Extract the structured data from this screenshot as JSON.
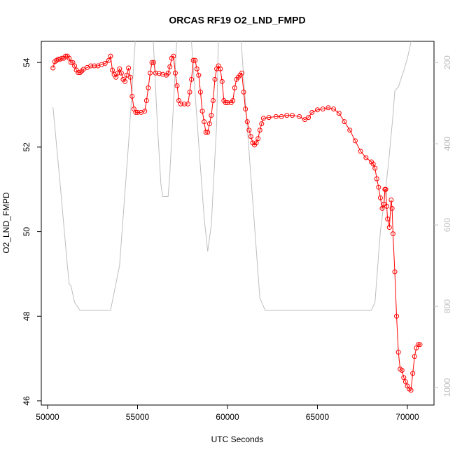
{
  "chart_data": {
    "type": "line",
    "title": "ORCAS RF19 O2_LND_FMPD",
    "x_label": "UTC Seconds",
    "y_label": "O2_LND_FMPD",
    "xlim": [
      49650,
      71480
    ],
    "xticks": [
      50000,
      55000,
      60000,
      65000,
      70000
    ],
    "ylim": [
      45.9,
      54.5
    ],
    "yticks": [
      46,
      48,
      50,
      52,
      54
    ],
    "y2lim": [
      1043,
      148
    ],
    "y2ticks": [
      200,
      400,
      600,
      800,
      1000
    ],
    "series": [
      {
        "color": "#bebebe",
        "axis": "y2",
        "x": [
          50300,
          50700,
          51100,
          51200,
          51300,
          51500,
          51800,
          52500,
          53500,
          54000,
          54500,
          54900,
          55400,
          55800,
          56100,
          56300,
          56400,
          56700,
          56800,
          57000,
          57200,
          57500,
          58000,
          58400,
          58700,
          58900,
          59100,
          59400,
          59500,
          60700,
          61000,
          61500,
          61800,
          62100,
          63000,
          65000,
          67000,
          68000,
          68200,
          68500,
          68800,
          69000,
          69200,
          69300,
          69500,
          69800,
          70000,
          70200,
          70500
        ],
        "values": [
          310,
          500,
          700,
          745,
          750,
          790,
          810,
          810,
          810,
          700,
          400,
          130,
          50,
          80,
          350,
          500,
          530,
          530,
          470,
          300,
          130,
          50,
          150,
          400,
          580,
          665,
          600,
          350,
          130,
          110,
          300,
          600,
          780,
          810,
          810,
          810,
          810,
          810,
          790,
          615,
          510,
          425,
          330,
          270,
          260,
          220,
          190,
          150,
          120
        ]
      },
      {
        "color": "#ff0000",
        "axis": "y",
        "x": [
          50300,
          50400,
          50500,
          50600,
          50700,
          50800,
          50900,
          51000,
          51100,
          51200,
          51300,
          51400,
          51500,
          51600,
          51700,
          51800,
          51900,
          52000,
          52200,
          52400,
          52600,
          52800,
          53000,
          53200,
          53400,
          53500,
          53600,
          53700,
          53800,
          53900,
          54000,
          54100,
          54200,
          54300,
          54400,
          54500,
          54600,
          54700,
          54800,
          54900,
          55000,
          55200,
          55400,
          55500,
          55600,
          55700,
          55800,
          55900,
          56000,
          56200,
          56400,
          56600,
          56700,
          56800,
          56900,
          57000,
          57100,
          57200,
          57300,
          57400,
          57600,
          57800,
          57900,
          58000,
          58100,
          58200,
          58300,
          58400,
          58500,
          58600,
          58700,
          58800,
          58900,
          59000,
          59100,
          59200,
          59300,
          59400,
          59500,
          59600,
          59700,
          59800,
          59900,
          60000,
          60200,
          60300,
          60400,
          60500,
          60600,
          60700,
          60800,
          60900,
          61000,
          61100,
          61200,
          61300,
          61400,
          61500,
          61600,
          61700,
          61800,
          61900,
          62000,
          62300,
          62700,
          63000,
          63300,
          63600,
          64000,
          64300,
          64500,
          64700,
          65000,
          65300,
          65600,
          65900,
          66200,
          66500,
          66800,
          67100,
          67400,
          67700,
          68000,
          68100,
          68200,
          68300,
          68400,
          68500,
          68600,
          68700,
          68750,
          68800,
          68850,
          68900,
          69000,
          69100,
          69150,
          69200,
          69300,
          69400,
          69500,
          69600,
          69700,
          69800,
          69900,
          70000,
          70100,
          70200,
          70300,
          70400,
          70500,
          70600,
          70700
        ],
        "values": [
          53.87,
          54.02,
          54.05,
          54.08,
          54.08,
          54.1,
          54.1,
          54.15,
          54.15,
          54.1,
          54.0,
          54.0,
          53.92,
          53.82,
          53.76,
          53.76,
          53.8,
          53.84,
          53.88,
          53.92,
          53.92,
          53.92,
          53.95,
          53.98,
          54.05,
          54.15,
          53.82,
          53.72,
          53.65,
          53.75,
          53.85,
          53.75,
          53.6,
          53.55,
          53.7,
          53.87,
          53.65,
          53.2,
          52.9,
          52.82,
          52.82,
          52.82,
          52.85,
          53.1,
          53.4,
          53.75,
          54.0,
          54.0,
          53.75,
          53.74,
          53.72,
          53.7,
          53.75,
          53.9,
          54.1,
          54.15,
          53.75,
          53.45,
          53.1,
          53.02,
          53.02,
          53.02,
          53.3,
          53.6,
          54.05,
          54.05,
          53.85,
          53.7,
          53.3,
          52.85,
          52.6,
          52.35,
          52.35,
          52.55,
          52.75,
          53.1,
          53.6,
          53.85,
          53.92,
          53.85,
          53.55,
          53.1,
          53.05,
          53.05,
          53.05,
          53.1,
          53.4,
          53.6,
          53.65,
          53.7,
          53.75,
          53.3,
          52.9,
          52.6,
          52.4,
          52.25,
          52.1,
          52.05,
          52.1,
          52.2,
          52.4,
          52.55,
          52.68,
          52.7,
          52.72,
          52.72,
          52.75,
          52.75,
          52.72,
          52.65,
          52.7,
          52.82,
          52.88,
          52.9,
          52.93,
          52.9,
          52.8,
          52.6,
          52.4,
          52.15,
          51.9,
          51.75,
          51.65,
          51.6,
          51.5,
          51.25,
          51.05,
          50.8,
          50.55,
          50.65,
          51.0,
          51.0,
          50.6,
          50.3,
          50.1,
          50.75,
          50.55,
          49.95,
          49.05,
          48.0,
          47.15,
          46.75,
          46.72,
          46.55,
          46.45,
          46.35,
          46.28,
          46.25,
          46.65,
          47.05,
          47.25,
          47.33,
          47.33
        ]
      }
    ]
  }
}
